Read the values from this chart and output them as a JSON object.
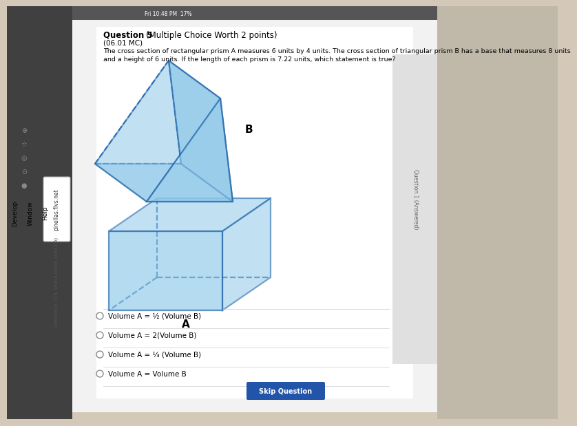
{
  "background_color": "#d4c8b8",
  "taskbar_color": "#3a3a3a",
  "sidebar_left_color": "#b8b0a8",
  "content_bg": "#f5f5f5",
  "content_bg2": "#e8e8e8",
  "prism_edge_color": "#1a5fa8",
  "prism_face_color": "#8ec8e8",
  "prism_face_alpha": 0.55,
  "lw": 1.6,
  "title": "Question 5",
  "title_bold": "Multiple Choice Worth 2 points)",
  "subtitle": "(06.01 MC)",
  "question_text_line1": "The cross section of rectangular prism A measures 6 units by 4 units. The cross section of triangular prism B has a base that measures 8 units",
  "question_text_line2": "and a height of 6 units. If the length of each prism is 7.22 units, which statement is true?",
  "label_A": "A",
  "label_B": "B",
  "choices": [
    "Volume A = ½ (Volume B)",
    "Volume A = 2(Volume B)",
    "Volume A = ⅓ (Volume B)",
    "Volume A = Volume B"
  ],
  "url": "pinellas.flvs.net",
  "course": "Geometry V19, Diana Dolan (4872/5)",
  "time_text": "Fri 10:48 PM",
  "question_counter": "Question 1 (Answered)",
  "skip_btn_color": "#2255aa",
  "skip_btn_text": "Skip Question",
  "browser_menu": [
    "Develop",
    "Window",
    "Help"
  ],
  "pct_text": "17%"
}
